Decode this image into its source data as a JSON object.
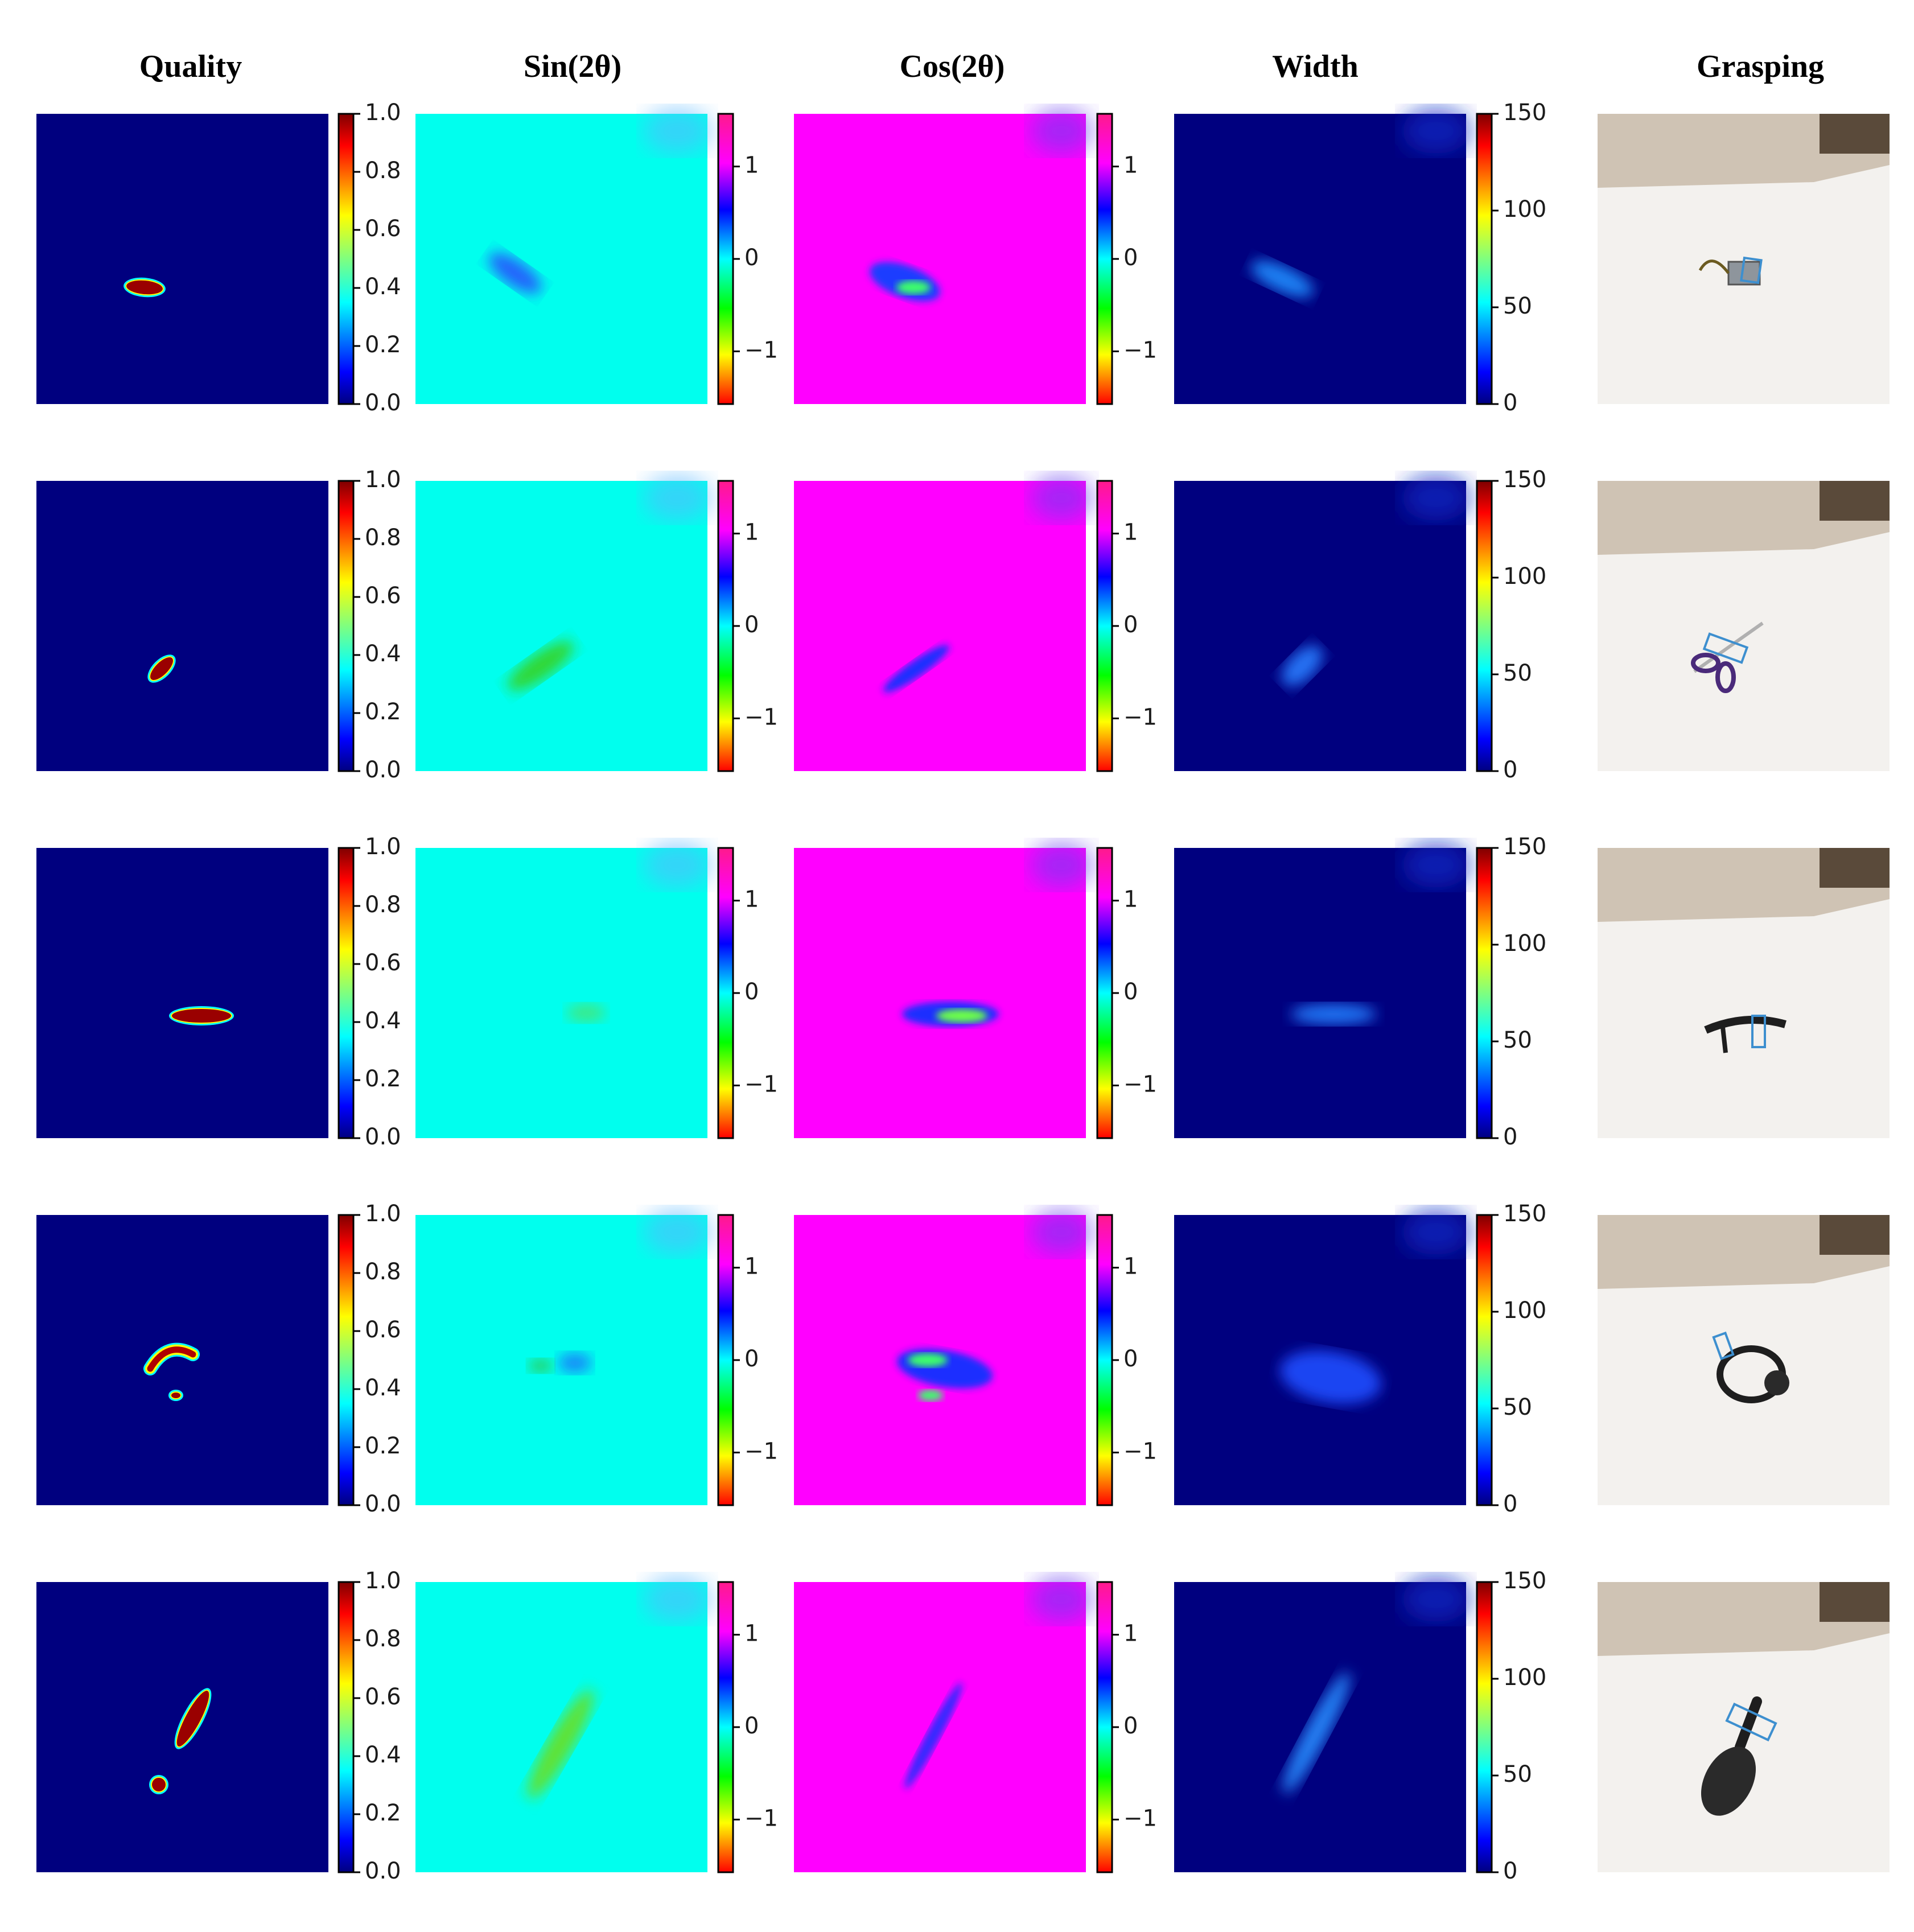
{
  "figure": {
    "columns": [
      {
        "title": "Quality"
      },
      {
        "title": "Sin(2θ)"
      },
      {
        "title": "Cos(2θ)"
      },
      {
        "title": "Width"
      },
      {
        "title": "Grasping"
      }
    ],
    "colorbars": {
      "quality": {
        "colormap": "jet",
        "range": [
          0.0,
          1.0
        ],
        "ticks": [
          "1.0",
          "0.8",
          "0.6",
          "0.4",
          "0.2",
          "0.0"
        ]
      },
      "sin": {
        "colormap": "hsv",
        "range": [
          -1.57,
          1.57
        ],
        "ticks": [
          "1",
          "0",
          "−1"
        ]
      },
      "cos": {
        "colormap": "hsv",
        "range": [
          -1.57,
          1.57
        ],
        "ticks": [
          "1",
          "0",
          "−1"
        ]
      },
      "width": {
        "colormap": "jet",
        "range": [
          0,
          150
        ],
        "ticks": [
          "150",
          "100",
          "50",
          "0"
        ]
      }
    },
    "rows": [
      {
        "object": "metal box with cable",
        "quality_shape": "small horizontal blob"
      },
      {
        "object": "scissors",
        "quality_shape": "small diagonal blob"
      },
      {
        "object": "high-heel shoe",
        "quality_shape": "elongated horizontal blob"
      },
      {
        "object": "headphones",
        "quality_shape": "arc with dot"
      },
      {
        "object": "spatula",
        "quality_shape": "diagonal stroke"
      }
    ],
    "colors": {
      "jet_background": "#00007f",
      "sin_background": "#00ffee",
      "cos_background": "#ff00ff",
      "photo_floor": "#f3f1ee",
      "photo_wall": "#cfc3b4",
      "grasp_box": "#3d8fcf"
    }
  }
}
